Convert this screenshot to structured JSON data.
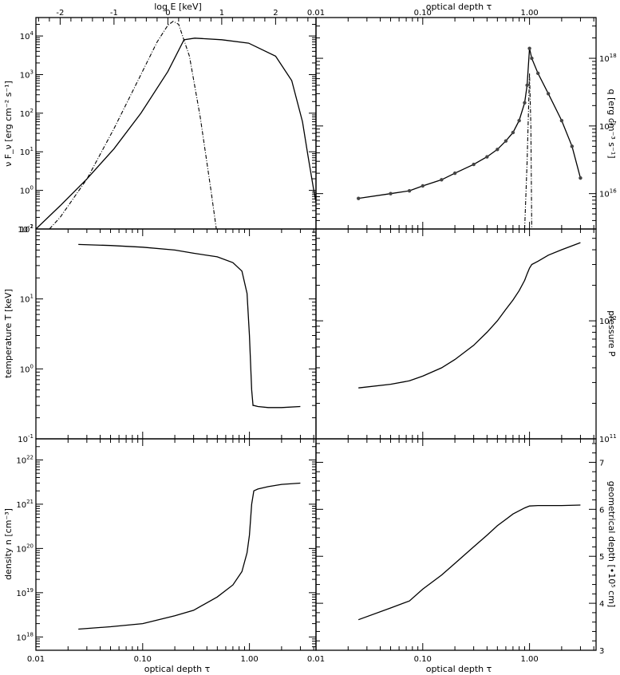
{
  "chart_data": [
    {
      "id": "spectrum",
      "type": "line",
      "ylabel": "ν F_ν [erg cm⁻² s⁻¹]",
      "top_axis_label": "log E [keV]",
      "top_axis_ticks": [
        "-2",
        "-1",
        "0",
        "1",
        "2"
      ],
      "x_range_logE": [
        -2.45,
        2.75
      ],
      "yscale": "log",
      "ylim": [
        0.1,
        30000
      ],
      "y_ticks": [
        "10^-1",
        "10^0",
        "10^1",
        "10^2",
        "10^3",
        "10^4"
      ],
      "series": [
        {
          "style": "solid",
          "x": [
            -2.45,
            -2.0,
            -1.5,
            -1.0,
            -0.5,
            0.0,
            0.3,
            0.5,
            1.0,
            1.5,
            2.0,
            2.3,
            2.5,
            2.6,
            2.7,
            2.75
          ],
          "y": [
            0.1,
            0.4,
            2.0,
            12,
            100,
            1200,
            8000,
            8800,
            8000,
            6500,
            3000,
            700,
            60,
            8,
            1.2,
            0.5
          ]
        },
        {
          "style": "dash-dot",
          "x": [
            -2.2,
            -2.0,
            -1.5,
            -1.0,
            -0.5,
            -0.2,
            0.0,
            0.1,
            0.2,
            0.4,
            0.6,
            0.8,
            0.9
          ],
          "y": [
            0.1,
            0.2,
            2.0,
            40,
            1000,
            7000,
            19000,
            24000,
            20000,
            3000,
            80,
            1,
            0.1
          ]
        }
      ]
    },
    {
      "id": "heating",
      "type": "line",
      "top_axis_label": "optical depth τ",
      "top_axis_ticks": [
        "0.01",
        "0.10",
        "1.00"
      ],
      "ylabel": "q [erg cm⁻³ s⁻¹]",
      "xscale": "log",
      "xlim": [
        0.01,
        4.2
      ],
      "yscale": "log",
      "ylim": [
        3000000000000000.0,
        4e+18
      ],
      "y_ticks": [
        "10^16",
        "10^17",
        "10^18"
      ],
      "series": [
        {
          "style": "solid-with-markers",
          "x": [
            0.025,
            0.05,
            0.075,
            0.1,
            0.15,
            0.2,
            0.3,
            0.4,
            0.5,
            0.6,
            0.7,
            0.8,
            0.9,
            0.95,
            1.0,
            1.05,
            1.2,
            1.5,
            2.0,
            2.5,
            3.0
          ],
          "y": [
            8500000000000000.0,
            1e+16,
            1.1e+16,
            1.3e+16,
            1.6e+16,
            2e+16,
            2.7e+16,
            3.5e+16,
            4.5e+16,
            6e+16,
            8e+16,
            1.2e+17,
            2.2e+17,
            4e+17,
            1.4e+18,
            1e+18,
            6e+17,
            3e+17,
            1.2e+17,
            5e+16,
            1.7e+16
          ]
        },
        {
          "style": "dash-dot",
          "x": [
            0.9,
            0.95,
            1.0,
            1.03,
            1.05
          ],
          "y": [
            3000000000000000.0,
            3e+16,
            6e+17,
            1e+17,
            3000000000000000.0
          ]
        }
      ]
    },
    {
      "id": "temperature",
      "type": "line",
      "ylabel": "temperature T [keV]",
      "xscale": "log",
      "xlim": [
        0.01,
        4.2
      ],
      "yscale": "log",
      "ylim": [
        0.1,
        100
      ],
      "y_ticks": [
        "10^-1",
        "10^0",
        "10^1",
        "10^2"
      ],
      "x": [
        0.025,
        0.05,
        0.1,
        0.2,
        0.3,
        0.5,
        0.7,
        0.85,
        0.95,
        1.0,
        1.05,
        1.08,
        1.1,
        1.2,
        1.5,
        2.0,
        3.0
      ],
      "y": [
        60,
        58,
        55,
        50,
        45,
        40,
        33,
        25,
        12,
        3,
        0.5,
        0.3,
        0.3,
        0.29,
        0.28,
        0.28,
        0.29
      ]
    },
    {
      "id": "pressure",
      "type": "line",
      "ylabel": "pressure P",
      "xscale": "log",
      "xlim": [
        0.01,
        4.2
      ],
      "yscale": "log",
      "ylim": [
        100000000000.0,
        6000000000000.0
      ],
      "y_ticks": [
        "10^11",
        "10^12"
      ],
      "x": [
        0.025,
        0.05,
        0.075,
        0.1,
        0.15,
        0.2,
        0.3,
        0.4,
        0.5,
        0.6,
        0.7,
        0.8,
        0.9,
        0.95,
        1.0,
        1.05,
        1.2,
        1.5,
        2.0,
        3.0
      ],
      "y": [
        270000000000.0,
        290000000000.0,
        310000000000.0,
        340000000000.0,
        400000000000.0,
        470000000000.0,
        620000000000.0,
        800000000000.0,
        1000000000000.0,
        1250000000000.0,
        1500000000000.0,
        1800000000000.0,
        2200000000000.0,
        2500000000000.0,
        2800000000000.0,
        3000000000000.0,
        3200000000000.0,
        3600000000000.0,
        4000000000000.0,
        4600000000000.0
      ]
    },
    {
      "id": "density",
      "type": "line",
      "ylabel": "density n [cm⁻³]",
      "xlabel": "optical depth τ",
      "x_ticks": [
        "0.01",
        "0.10",
        "1.00"
      ],
      "xscale": "log",
      "xlim": [
        0.01,
        4.2
      ],
      "yscale": "log",
      "ylim": [
        5e+17,
        3e+22
      ],
      "y_ticks": [
        "10^18",
        "10^19",
        "10^20",
        "10^21",
        "10^22"
      ],
      "x": [
        0.025,
        0.05,
        0.1,
        0.2,
        0.3,
        0.5,
        0.7,
        0.85,
        0.95,
        1.0,
        1.05,
        1.1,
        1.2,
        1.5,
        2.0,
        3.0
      ],
      "y": [
        1.5e+18,
        1.7e+18,
        2e+18,
        3e+18,
        4e+18,
        8e+18,
        1.5e+19,
        3e+19,
        8e+19,
        2e+20,
        1e+21,
        2e+21,
        2.2e+21,
        2.5e+21,
        2.8e+21,
        3e+21
      ]
    },
    {
      "id": "geometrical",
      "type": "line",
      "ylabel": "geometrical depth [•10⁵ cm]",
      "xlabel": "optical depth τ",
      "x_ticks": [
        "0.01",
        "0.10",
        "1.00"
      ],
      "xscale": "log",
      "xlim": [
        0.01,
        4.2
      ],
      "yscale": "linear",
      "ylim": [
        3,
        7.5
      ],
      "y_ticks": [
        "3",
        "4",
        "5",
        "6",
        "7"
      ],
      "x": [
        0.025,
        0.05,
        0.075,
        0.1,
        0.15,
        0.2,
        0.3,
        0.4,
        0.5,
        0.7,
        0.9,
        1.0,
        1.2,
        1.5,
        2.0,
        3.0
      ],
      "y": [
        3.65,
        3.9,
        4.05,
        4.3,
        4.6,
        4.85,
        5.2,
        5.45,
        5.65,
        5.9,
        6.03,
        6.07,
        6.08,
        6.08,
        6.08,
        6.09
      ]
    }
  ]
}
